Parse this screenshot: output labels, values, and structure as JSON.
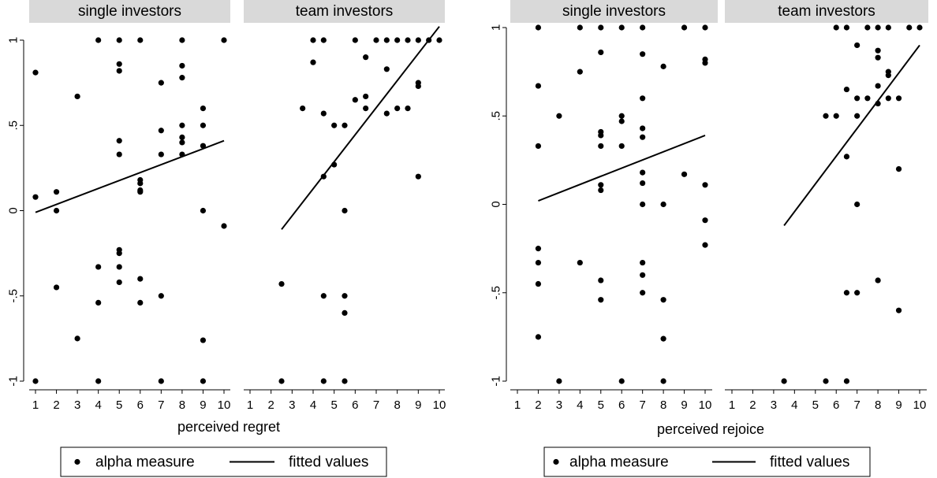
{
  "chart_data": [
    {
      "type": "scatter",
      "xlabel": "perceived regret",
      "ylabel": "",
      "ylim": [
        -1,
        1
      ],
      "xlim": [
        1,
        10
      ],
      "grid": false,
      "y_ticks": [
        {
          "value": -1,
          "label": "-1"
        },
        {
          "value": -0.5,
          "label": "-.5"
        },
        {
          "value": 0,
          "label": "0"
        },
        {
          "value": 0.5,
          "label": ".5"
        },
        {
          "value": 1,
          "label": "1"
        }
      ],
      "x_ticks": [
        "1",
        "2",
        "3",
        "4",
        "5",
        "6",
        "7",
        "8",
        "9",
        "10"
      ],
      "panels": [
        {
          "title": "single investors",
          "points": [
            [
              1,
              0.81
            ],
            [
              1,
              0.08
            ],
            [
              1,
              -1
            ],
            [
              2,
              0.11
            ],
            [
              2,
              0
            ],
            [
              2,
              -0.45
            ],
            [
              3,
              0.67
            ],
            [
              3,
              -0.75
            ],
            [
              4,
              1
            ],
            [
              4,
              -0.33
            ],
            [
              4,
              -0.54
            ],
            [
              4,
              -1
            ],
            [
              5,
              1
            ],
            [
              5,
              0.86
            ],
            [
              5,
              0.82
            ],
            [
              5,
              0.41
            ],
            [
              5,
              0.33
            ],
            [
              5,
              -0.23
            ],
            [
              5,
              -0.25
            ],
            [
              5,
              -0.33
            ],
            [
              5,
              -0.42
            ],
            [
              6,
              1
            ],
            [
              6,
              0.18
            ],
            [
              6,
              0.16
            ],
            [
              6,
              0.12
            ],
            [
              6,
              0.11
            ],
            [
              6,
              -0.4
            ],
            [
              6,
              -0.54
            ],
            [
              7,
              0.75
            ],
            [
              7,
              0.47
            ],
            [
              7,
              0.33
            ],
            [
              7,
              -0.5
            ],
            [
              7,
              -1
            ],
            [
              8,
              1
            ],
            [
              8,
              0.85
            ],
            [
              8,
              0.78
            ],
            [
              8,
              0.5
            ],
            [
              8,
              0.43
            ],
            [
              8,
              0.4
            ],
            [
              8,
              0.33
            ],
            [
              9,
              0.6
            ],
            [
              9,
              0.5
            ],
            [
              9,
              0.38
            ],
            [
              9,
              0
            ],
            [
              9,
              -0.76
            ],
            [
              9,
              -1
            ],
            [
              10,
              1
            ],
            [
              10,
              -0.09
            ]
          ],
          "fit": {
            "x": [
              1,
              10
            ],
            "y": [
              -0.01,
              0.41
            ]
          }
        },
        {
          "title": "team investors",
          "points": [
            [
              2.5,
              -0.43
            ],
            [
              2.5,
              -1
            ],
            [
              3.5,
              0.6
            ],
            [
              4,
              1
            ],
            [
              4,
              0.87
            ],
            [
              4.5,
              1
            ],
            [
              4.5,
              0.57
            ],
            [
              4.5,
              0.2
            ],
            [
              4.5,
              -0.5
            ],
            [
              4.5,
              -1
            ],
            [
              5,
              0.5
            ],
            [
              5,
              0.27
            ],
            [
              5.5,
              0.5
            ],
            [
              5.5,
              0
            ],
            [
              5.5,
              -0.5
            ],
            [
              5.5,
              -0.6
            ],
            [
              5.5,
              -1
            ],
            [
              6,
              1
            ],
            [
              6,
              0.65
            ],
            [
              6.5,
              0.9
            ],
            [
              6.5,
              0.67
            ],
            [
              6.5,
              0.6
            ],
            [
              7,
              1
            ],
            [
              7.5,
              1
            ],
            [
              7.5,
              0.83
            ],
            [
              7.5,
              0.57
            ],
            [
              8,
              1
            ],
            [
              8,
              0.6
            ],
            [
              8.5,
              1
            ],
            [
              8.5,
              0.6
            ],
            [
              9,
              1
            ],
            [
              9,
              0.75
            ],
            [
              9,
              0.73
            ],
            [
              9,
              0.2
            ],
            [
              9.5,
              1
            ],
            [
              10,
              1
            ]
          ],
          "fit": {
            "x": [
              2.5,
              10
            ],
            "y": [
              -0.11,
              1.08
            ]
          }
        }
      ],
      "legend": {
        "position": "bottom",
        "entries": [
          {
            "label": "alpha measure",
            "marker": "dot"
          },
          {
            "label": "fitted values",
            "marker": "line"
          }
        ]
      }
    },
    {
      "type": "scatter",
      "xlabel": "perceived rejoice",
      "ylabel": "",
      "ylim": [
        -1,
        1
      ],
      "xlim": [
        1,
        10
      ],
      "grid": false,
      "y_ticks": [
        {
          "value": -1,
          "label": "-1"
        },
        {
          "value": -0.5,
          "label": "-.5"
        },
        {
          "value": 0,
          "label": "0"
        },
        {
          "value": 0.5,
          "label": ".5"
        },
        {
          "value": 1,
          "label": "1"
        }
      ],
      "x_ticks": [
        "1",
        "2",
        "3",
        "4",
        "5",
        "6",
        "7",
        "8",
        "9",
        "10"
      ],
      "panels": [
        {
          "title": "single investors",
          "points": [
            [
              2,
              1
            ],
            [
              2,
              0.67
            ],
            [
              2,
              0.33
            ],
            [
              2,
              -0.25
            ],
            [
              2,
              -0.33
            ],
            [
              2,
              -0.45
            ],
            [
              2,
              -0.75
            ],
            [
              3,
              0.5
            ],
            [
              3,
              -1
            ],
            [
              4,
              1
            ],
            [
              4,
              0.75
            ],
            [
              4,
              -0.33
            ],
            [
              5,
              1
            ],
            [
              5,
              0.86
            ],
            [
              5,
              0.41
            ],
            [
              5,
              0.39
            ],
            [
              5,
              0.33
            ],
            [
              5,
              0.11
            ],
            [
              5,
              0.08
            ],
            [
              5,
              -0.43
            ],
            [
              5,
              -0.54
            ],
            [
              6,
              1
            ],
            [
              6,
              0.5
            ],
            [
              6,
              0.47
            ],
            [
              6,
              0.33
            ],
            [
              6,
              -1
            ],
            [
              7,
              1
            ],
            [
              7,
              0.85
            ],
            [
              7,
              0.6
            ],
            [
              7,
              0.43
            ],
            [
              7,
              0.38
            ],
            [
              7,
              0.18
            ],
            [
              7,
              0.12
            ],
            [
              7,
              0
            ],
            [
              7,
              -0.33
            ],
            [
              7,
              -0.4
            ],
            [
              7,
              -0.5
            ],
            [
              8,
              0.78
            ],
            [
              8,
              0
            ],
            [
              8,
              -0.54
            ],
            [
              8,
              -0.76
            ],
            [
              8,
              -1
            ],
            [
              9,
              1
            ],
            [
              9,
              0.17
            ],
            [
              10,
              1
            ],
            [
              10,
              0.82
            ],
            [
              10,
              0.8
            ],
            [
              10,
              0.11
            ],
            [
              10,
              -0.09
            ],
            [
              10,
              -0.23
            ]
          ],
          "fit": {
            "x": [
              2,
              10
            ],
            "y": [
              0.02,
              0.39
            ]
          }
        },
        {
          "title": "team investors",
          "points": [
            [
              3.5,
              -1
            ],
            [
              5.5,
              0.5
            ],
            [
              5.5,
              -1
            ],
            [
              6,
              1
            ],
            [
              6,
              0.5
            ],
            [
              6.5,
              1
            ],
            [
              6.5,
              0.65
            ],
            [
              6.5,
              0.27
            ],
            [
              6.5,
              -0.5
            ],
            [
              6.5,
              -1
            ],
            [
              7,
              0.9
            ],
            [
              7,
              0.6
            ],
            [
              7,
              0.5
            ],
            [
              7,
              0
            ],
            [
              7,
              -0.5
            ],
            [
              7.5,
              1
            ],
            [
              7.5,
              0.6
            ],
            [
              8,
              1
            ],
            [
              8,
              0.87
            ],
            [
              8,
              0.83
            ],
            [
              8,
              0.67
            ],
            [
              8,
              0.57
            ],
            [
              8,
              -0.43
            ],
            [
              8.5,
              1
            ],
            [
              8.5,
              0.75
            ],
            [
              8.5,
              0.73
            ],
            [
              8.5,
              0.6
            ],
            [
              9,
              0.6
            ],
            [
              9,
              0.2
            ],
            [
              9,
              -0.6
            ],
            [
              9.5,
              1
            ],
            [
              10,
              1
            ]
          ],
          "fit": {
            "x": [
              3.5,
              10
            ],
            "y": [
              -0.12,
              0.9
            ]
          }
        }
      ],
      "legend": {
        "position": "bottom",
        "entries": [
          {
            "label": "alpha measure",
            "marker": "dot"
          },
          {
            "label": "fitted values",
            "marker": "line"
          }
        ]
      }
    }
  ]
}
